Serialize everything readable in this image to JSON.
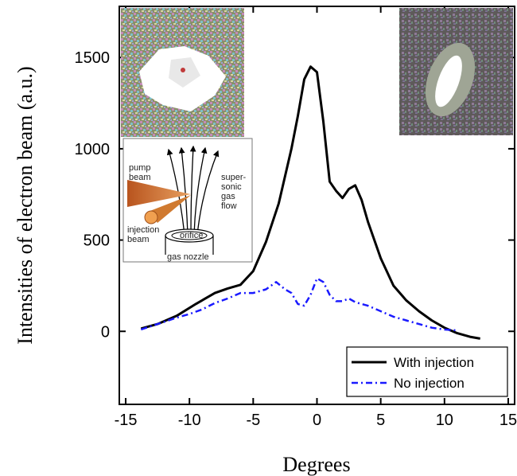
{
  "chart_data": {
    "type": "line",
    "xlabel": "Degrees",
    "ylabel": "Intensities of electron beam (a.u.)",
    "xlim": [
      -15.5,
      15.5
    ],
    "ylim": [
      -400,
      1780
    ],
    "xticks": [
      -15,
      -10,
      -5,
      0,
      5,
      10,
      15
    ],
    "yticks": [
      0,
      500,
      1000,
      1500
    ],
    "grid": false,
    "legend_position": "bottom-right",
    "series": [
      {
        "name": "With injection",
        "style": "solid",
        "color": "#000000",
        "x": [
          -13.8,
          -12.5,
          -11,
          -9.5,
          -8,
          -7,
          -6,
          -5,
          -4,
          -3,
          -2,
          -1.5,
          -1,
          -0.5,
          0,
          0.5,
          1,
          1.5,
          2,
          2.5,
          3,
          3.5,
          4,
          5,
          6,
          7,
          8,
          9,
          10,
          11,
          12,
          12.8
        ],
        "y": [
          15,
          40,
          85,
          150,
          210,
          235,
          255,
          330,
          490,
          700,
          1000,
          1180,
          1380,
          1450,
          1420,
          1150,
          820,
          770,
          730,
          780,
          800,
          720,
          600,
          400,
          250,
          170,
          110,
          60,
          20,
          -10,
          -30,
          -40
        ]
      },
      {
        "name": "No injection",
        "style": "dash-dot",
        "color": "#1a1aff",
        "x": [
          -13.8,
          -12.5,
          -11,
          -10,
          -9,
          -8,
          -7,
          -6,
          -5,
          -4,
          -3.2,
          -2.5,
          -2,
          -1.5,
          -1,
          -0.5,
          0,
          0.5,
          1,
          1.5,
          2,
          2.5,
          3,
          3.5,
          4,
          5,
          6,
          7,
          8,
          9,
          10,
          11
        ],
        "y": [
          10,
          40,
          75,
          95,
          120,
          155,
          180,
          210,
          210,
          230,
          270,
          230,
          210,
          150,
          140,
          200,
          290,
          270,
          200,
          165,
          165,
          180,
          160,
          150,
          140,
          110,
          80,
          60,
          40,
          20,
          10,
          5
        ]
      }
    ]
  },
  "inset": {
    "labels": {
      "pump": "pump\nbeam",
      "injection": "injection\nbeam",
      "flow": "super-\nsonic\ngas\nflow",
      "orifice": "orifice",
      "nozzle": "gas nozzle"
    }
  }
}
